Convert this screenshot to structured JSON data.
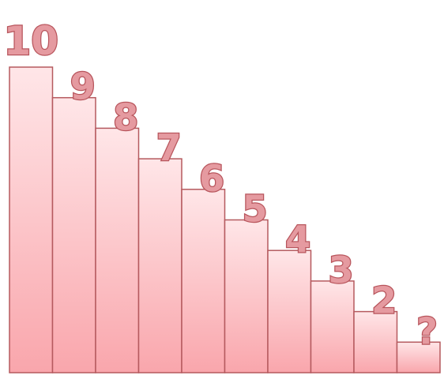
{
  "chart_data": {
    "type": "bar",
    "categories": [
      "10",
      "9",
      "8",
      "7",
      "6",
      "5",
      "4",
      "3",
      "2",
      "?"
    ],
    "values": [
      10,
      9,
      8,
      7,
      6,
      5,
      4,
      3,
      2,
      1
    ],
    "data_labels": [
      "10",
      "9",
      "8",
      "7",
      "6",
      "5",
      "4",
      "3",
      "2",
      "?"
    ],
    "ylim": [
      0,
      10
    ],
    "grid": false,
    "legend": "none",
    "colors": {
      "bar_top": "#ffe6e8",
      "bar_bottom": "#f9a6ac",
      "bar_stroke": "#b55a5f",
      "label_fill": "#e59aa0",
      "label_stroke": "#b8555c"
    }
  }
}
